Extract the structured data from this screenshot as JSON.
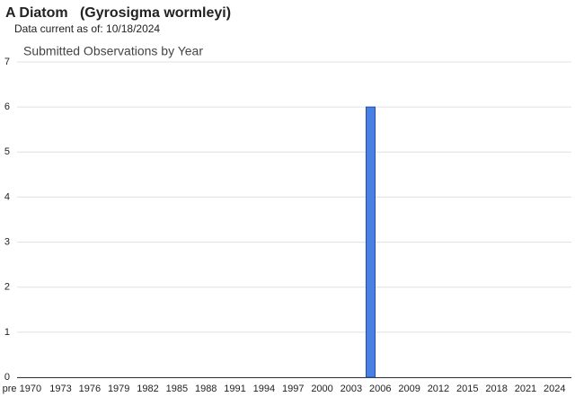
{
  "header": {
    "title": "A Diatom   (Gyrosigma wormleyi)",
    "subtitle": "Data current as of: 10/18/2024"
  },
  "chart_data": {
    "type": "bar",
    "title": "Submitted Observations by Year",
    "categories": [
      "pre 1970",
      null,
      null,
      null,
      "1973",
      null,
      null,
      "1976",
      null,
      null,
      "1979",
      null,
      null,
      "1982",
      null,
      null,
      "1985",
      null,
      null,
      "1988",
      null,
      null,
      "1991",
      null,
      null,
      "1994",
      null,
      null,
      "1997",
      null,
      null,
      "2000",
      null,
      null,
      "2003",
      null,
      null,
      "2006",
      null,
      null,
      "2009",
      null,
      null,
      "2012",
      null,
      null,
      "2015",
      null,
      null,
      "2018",
      null,
      null,
      "2021",
      null,
      null,
      "2024"
    ],
    "values": [
      0,
      0,
      0,
      0,
      0,
      0,
      0,
      0,
      0,
      0,
      0,
      0,
      0,
      0,
      0,
      0,
      0,
      0,
      0,
      0,
      0,
      0,
      0,
      0,
      0,
      0,
      0,
      0,
      0,
      0,
      0,
      0,
      0,
      0,
      0,
      0,
      6,
      0,
      0,
      0,
      0,
      0,
      0,
      0,
      0,
      0,
      0,
      0,
      0,
      0,
      0,
      0,
      0,
      0,
      0,
      0
    ],
    "color": "#4a7fe3",
    "ylim": [
      0,
      7
    ],
    "yticks": [
      0,
      1,
      2,
      3,
      4,
      5,
      6,
      7
    ],
    "grid": true
  }
}
